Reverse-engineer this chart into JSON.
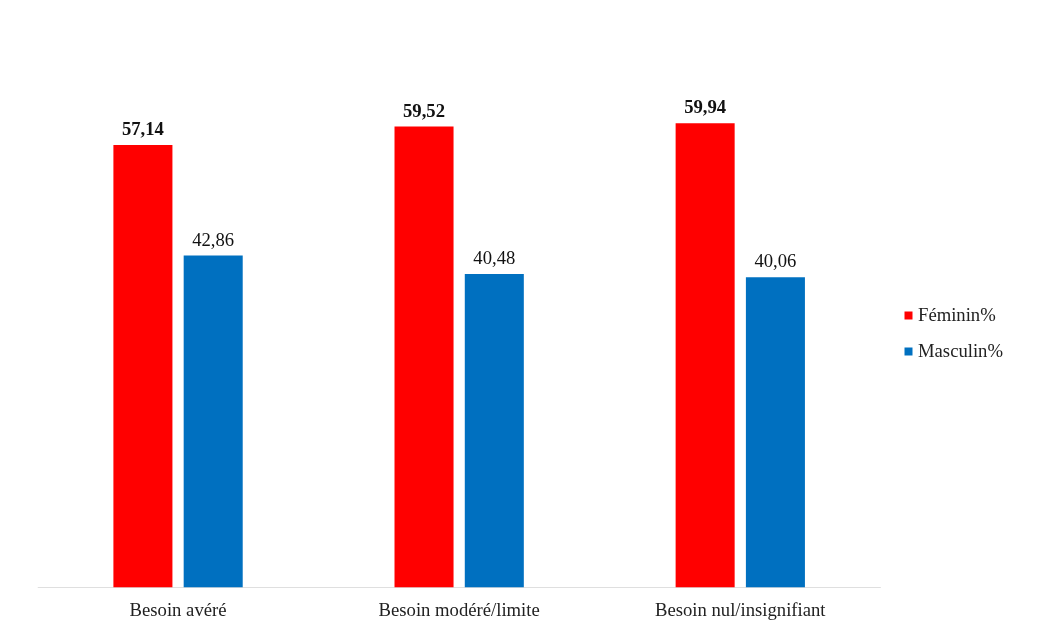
{
  "chart_data": {
    "type": "bar",
    "categories": [
      "Besoin avéré",
      "Besoin modéré/limite",
      "Besoin nul/insignifiant"
    ],
    "series": [
      {
        "name": "Féminin%",
        "color": "#ff0000",
        "values": [
          57.14,
          59.52,
          59.94
        ],
        "value_labels": [
          "57,14",
          "59,52",
          "59,94"
        ]
      },
      {
        "name": "Masculin%",
        "color": "#0070c0",
        "values": [
          42.86,
          40.48,
          40.06
        ],
        "value_labels": [
          "42,86",
          "40,48",
          "40,06"
        ]
      }
    ],
    "grid": false,
    "legend": "right"
  }
}
